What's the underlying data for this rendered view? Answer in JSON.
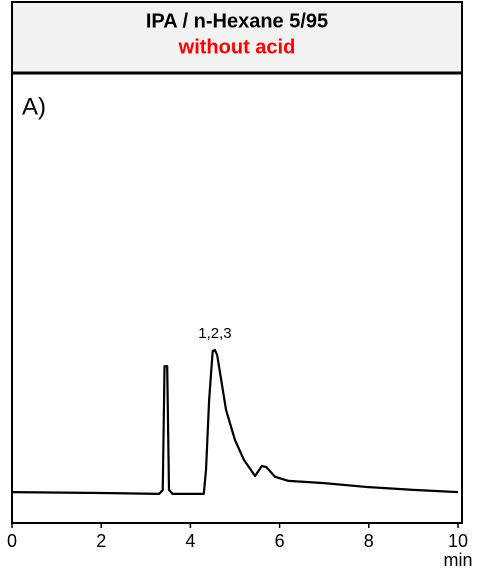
{
  "chart_data": {
    "type": "line",
    "title": "IPA / n-Hexane 5/95",
    "subtitle": "without acid",
    "subtitle_color": "#ff0000",
    "panel_label": "A)",
    "annotation": "1,2,3",
    "xlabel": "min",
    "xlim": [
      0,
      10
    ],
    "xticks": [
      0,
      2,
      4,
      6,
      8,
      10
    ],
    "ylim": [
      0,
      100
    ],
    "series": [
      {
        "color": "#000000",
        "x": [
          0,
          2,
          3.3,
          3.38,
          3.42,
          3.48,
          3.52,
          3.6,
          4.3,
          4.35,
          4.42,
          4.5,
          4.55,
          4.6,
          4.8,
          5.0,
          5.2,
          5.45,
          5.6,
          5.7,
          5.9,
          6.2,
          7,
          8,
          9,
          10
        ],
        "values": [
          6.9,
          6.7,
          6.5,
          7.4,
          35.0,
          35.0,
          7.4,
          6.5,
          6.5,
          11.8,
          27.5,
          38.4,
          38.6,
          37.5,
          25.2,
          18.5,
          14.1,
          10.5,
          12.7,
          12.5,
          10.3,
          9.4,
          8.9,
          8.0,
          7.4,
          6.9
        ]
      }
    ]
  }
}
